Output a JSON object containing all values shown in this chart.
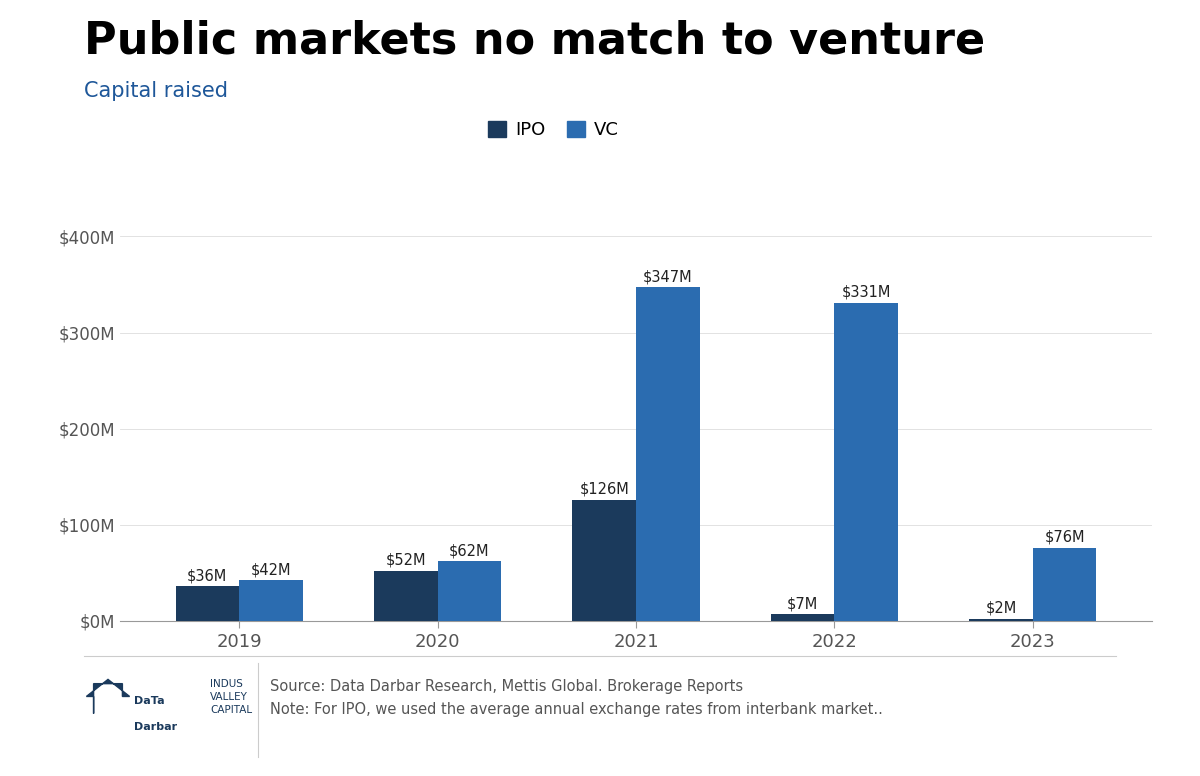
{
  "title": "Public markets no match to venture",
  "subtitle": "Capital raised",
  "title_color": "#000000",
  "subtitle_color": "#1e5799",
  "years": [
    "2019",
    "2020",
    "2021",
    "2022",
    "2023"
  ],
  "ipo_values": [
    36,
    52,
    126,
    7,
    2
  ],
  "vc_values": [
    42,
    62,
    347,
    331,
    76
  ],
  "ipo_labels": [
    "$36M",
    "$52M",
    "$126M",
    "$7M",
    "$2M"
  ],
  "vc_labels": [
    "$42M",
    "$62M",
    "$347M",
    "$331M",
    "$76M"
  ],
  "ipo_color": "#1b3a5c",
  "vc_color": "#2b6cb0",
  "ylim": [
    0,
    420
  ],
  "yticks": [
    0,
    100,
    200,
    300,
    400
  ],
  "ytick_labels": [
    "$0M",
    "$100M",
    "$200M",
    "$300M",
    "$400M"
  ],
  "background_color": "#ffffff",
  "source_line1": "Source: Data Darbar Research, Mettis Global. Brokerage Reports",
  "source_line2": "Note: For IPO, we used the average annual exchange rates from interbank market..",
  "bar_width": 0.32,
  "label_fontsize": 10.5,
  "axis_fontsize": 12,
  "xtick_fontsize": 13,
  "legend_fontsize": 13,
  "title_fontsize": 32,
  "subtitle_fontsize": 15
}
